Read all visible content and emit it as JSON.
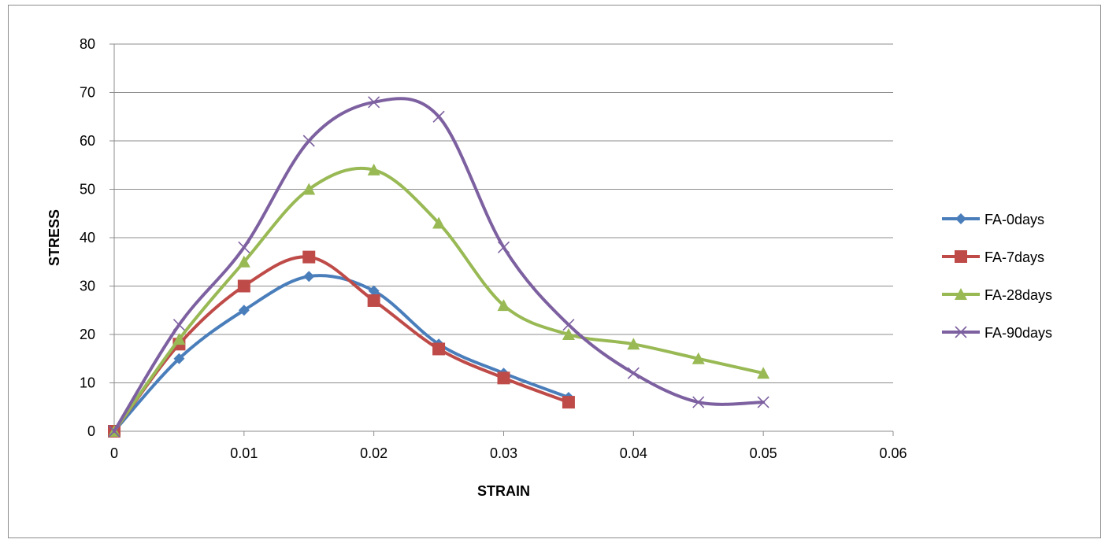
{
  "chart_data": {
    "type": "line",
    "title": "",
    "xlabel": "STRAIN",
    "ylabel": "STRESS",
    "xlim": [
      0,
      0.06
    ],
    "ylim": [
      0,
      80
    ],
    "xticks": [
      0,
      0.01,
      0.02,
      0.03,
      0.04,
      0.05,
      0.06
    ],
    "xtick_labels": [
      "0",
      "0.01",
      "0.02",
      "0.03",
      "0.04",
      "0.05",
      "0.06"
    ],
    "yticks": [
      0,
      10,
      20,
      30,
      40,
      50,
      60,
      70,
      80
    ],
    "ytick_labels": [
      "0",
      "10",
      "20",
      "30",
      "40",
      "50",
      "60",
      "70",
      "80"
    ],
    "grid": "horizontal",
    "legend": "right",
    "smooth": true,
    "series": [
      {
        "name": "FA-0days",
        "color": "#4a7ebb",
        "marker": "diamond",
        "x": [
          0,
          0.005,
          0.01,
          0.015,
          0.02,
          0.025,
          0.03,
          0.035
        ],
        "y": [
          0,
          15,
          25,
          32,
          29,
          18,
          12,
          7
        ]
      },
      {
        "name": "FA-7days",
        "color": "#be4b48",
        "marker": "square",
        "x": [
          0,
          0.005,
          0.01,
          0.015,
          0.02,
          0.025,
          0.03,
          0.035
        ],
        "y": [
          0,
          18,
          30,
          36,
          27,
          17,
          11,
          6
        ]
      },
      {
        "name": "FA-28days",
        "color": "#98b954",
        "marker": "triangle",
        "x": [
          0,
          0.005,
          0.01,
          0.015,
          0.02,
          0.025,
          0.03,
          0.035,
          0.04,
          0.045,
          0.05
        ],
        "y": [
          0,
          19,
          35,
          50,
          54,
          43,
          26,
          20,
          18,
          15,
          12
        ]
      },
      {
        "name": "FA-90days",
        "color": "#7d60a0",
        "marker": "x",
        "x": [
          0,
          0.005,
          0.01,
          0.015,
          0.02,
          0.025,
          0.03,
          0.035,
          0.04,
          0.045,
          0.05
        ],
        "y": [
          0,
          22,
          38,
          60,
          68,
          65,
          38,
          22,
          12,
          6,
          6
        ]
      }
    ]
  }
}
